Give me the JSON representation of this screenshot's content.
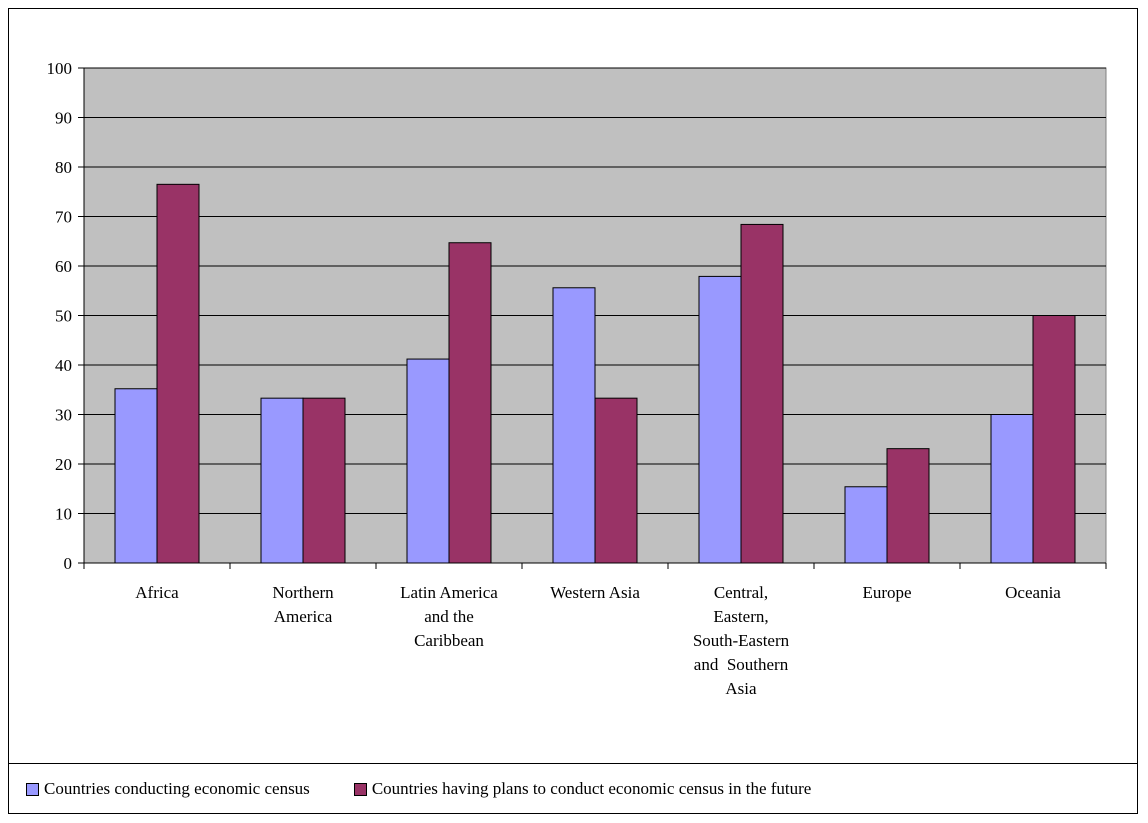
{
  "chart_data": {
    "type": "bar",
    "title": "",
    "xlabel": "",
    "ylabel": "",
    "ylim": [
      0,
      100
    ],
    "yticks": [
      0,
      10,
      20,
      30,
      40,
      50,
      60,
      70,
      80,
      90,
      100
    ],
    "grid": true,
    "legend_position": "bottom",
    "categories": [
      [
        "Africa"
      ],
      [
        "Northern",
        "America"
      ],
      [
        "Latin America",
        "and the",
        "Caribbean"
      ],
      [
        "Western Asia"
      ],
      [
        "Central,",
        "Eastern,",
        "South-Eastern",
        "and  Southern",
        "Asia"
      ],
      [
        "Europe"
      ],
      [
        "Oceania"
      ]
    ],
    "series": [
      {
        "name": "Countries conducting economic census",
        "color": "#9999ff",
        "values": [
          35.2,
          33.3,
          41.2,
          55.6,
          57.9,
          15.4,
          30.0
        ]
      },
      {
        "name": "Countries having plans to conduct economic census in the future",
        "color": "#993366",
        "values": [
          76.5,
          33.3,
          64.7,
          33.3,
          68.4,
          23.1,
          50.0
        ]
      }
    ],
    "plot_background": "#c0c0c0"
  }
}
